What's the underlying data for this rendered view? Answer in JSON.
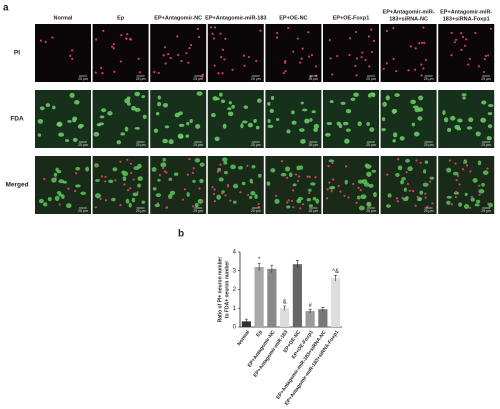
{
  "panel_a": {
    "label": "a",
    "columns": [
      [
        "Normal"
      ],
      [
        "Ep"
      ],
      [
        "EP+Antagomir-NC"
      ],
      [
        "EP+Antagomir-miR-183"
      ],
      [
        "EP+OE-NC"
      ],
      [
        "EP+OE-Foxp1"
      ],
      [
        "EP+Antagomir-miR-",
        "183+siRNA-NC"
      ],
      [
        "EP+Antagomir-miR-",
        "183+siRNA-Foxp1"
      ]
    ],
    "rows": [
      "PI",
      "FDA",
      "Merged"
    ],
    "scale_bar": "25 μm"
  },
  "chart_data": {
    "type": "bar",
    "label": "b",
    "y_label": [
      "Ratio of PI+ neuron number",
      "to FDA+ neuron number"
    ],
    "categories": [
      "Normal",
      "Ep",
      "EP+Antagomir-NC",
      "EP+Antagomir-miR-183",
      "EP+OE-NC",
      "EP+OE-Foxp1",
      "EP+Antagomir-miR-183+siRNA-NC",
      "EP+Antagomir-miR-183+siRNA-Foxp1"
    ],
    "values": [
      0.3,
      3.2,
      3.1,
      1.0,
      3.35,
      0.85,
      0.95,
      2.6
    ],
    "errors": [
      0.12,
      0.2,
      0.2,
      0.12,
      0.2,
      0.1,
      0.1,
      0.15
    ],
    "colors": [
      "#333333",
      "#a8a8a8",
      "#888888",
      "#dcdcdc",
      "#666666",
      "#9a9a9a",
      "#777777",
      "#dddddd"
    ],
    "annotations": [
      null,
      "*",
      null,
      "&",
      null,
      "#",
      null,
      "^&"
    ],
    "ylim": [
      0,
      4
    ],
    "yticks": [
      0,
      1,
      2,
      3,
      4
    ]
  }
}
